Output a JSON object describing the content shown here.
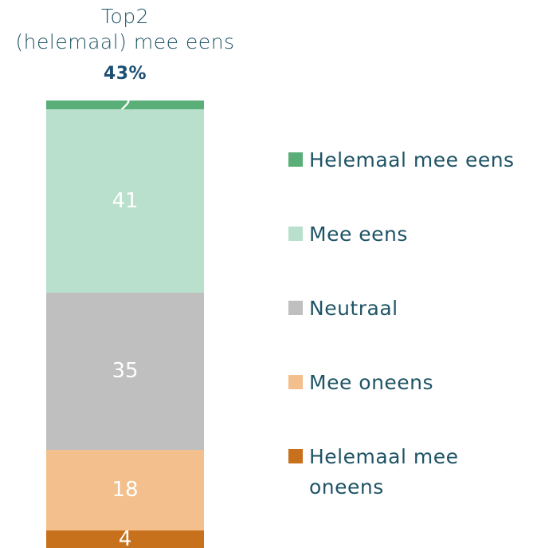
{
  "chart_data": {
    "type": "bar",
    "stacked": true,
    "title": "Top2",
    "subtitle": "(helemaal) mee eens",
    "annotation": "43%",
    "categories": [
      null
    ],
    "series": [
      {
        "name": "Helemaal mee eens",
        "color": "#5aae78",
        "values": [
          2
        ]
      },
      {
        "name": "Mee eens",
        "color": "#b9e0cc",
        "values": [
          41
        ]
      },
      {
        "name": "Neutraal",
        "color": "#bfbfbf",
        "values": [
          35
        ]
      },
      {
        "name": "Mee oneens",
        "color": "#f3bf8c",
        "values": [
          18
        ]
      },
      {
        "name": "Helemaal mee oneens",
        "color": "#c8711d",
        "values": [
          4
        ]
      }
    ]
  }
}
